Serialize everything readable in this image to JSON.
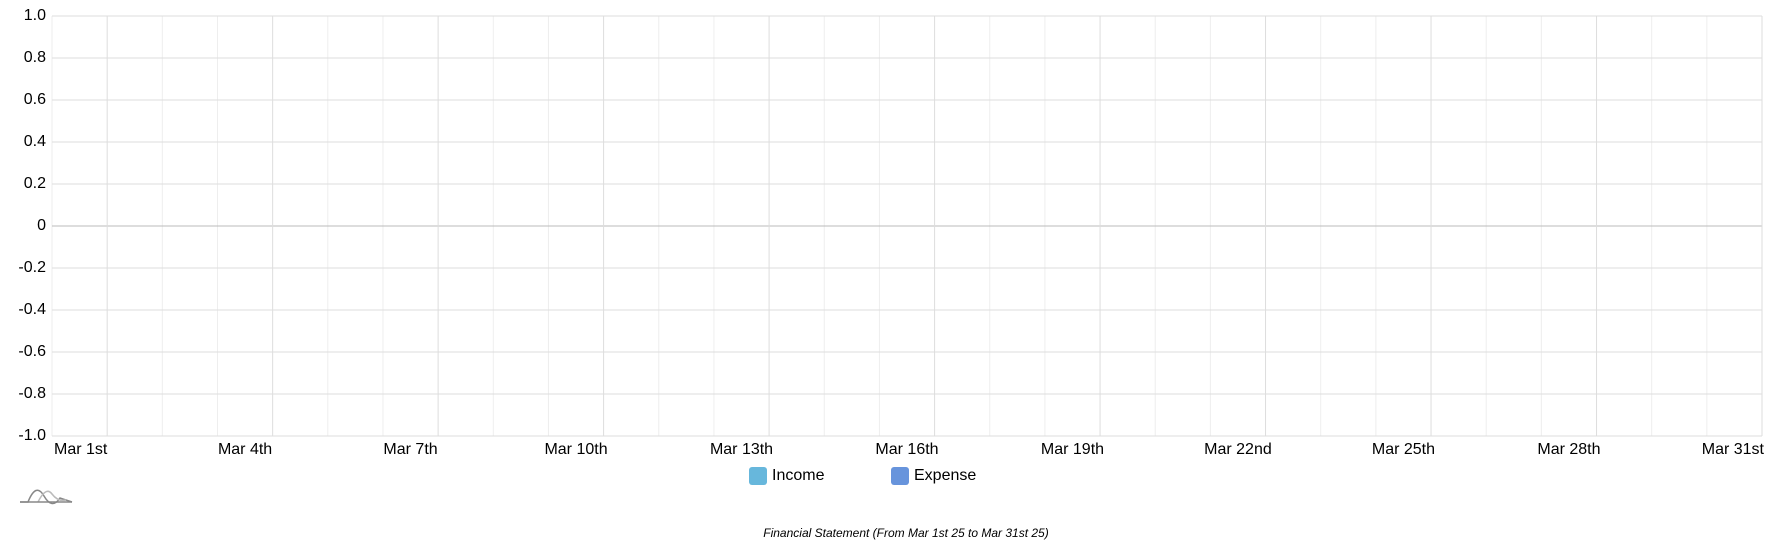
{
  "chart_data": {
    "type": "line",
    "categories": [
      "Mar 1st",
      "Mar 4th",
      "Mar 7th",
      "Mar 10th",
      "Mar 13th",
      "Mar 16th",
      "Mar 19th",
      "Mar 22nd",
      "Mar 25th",
      "Mar 28th",
      "Mar 31st"
    ],
    "series": [
      {
        "name": "Income",
        "color": "#67b7dc",
        "values": [
          null,
          null,
          null,
          null,
          null,
          null,
          null,
          null,
          null,
          null,
          null
        ]
      },
      {
        "name": "Expense",
        "color": "#6794dc",
        "values": [
          null,
          null,
          null,
          null,
          null,
          null,
          null,
          null,
          null,
          null,
          null
        ]
      }
    ],
    "ylim": [
      -1,
      1
    ],
    "yticks": [
      {
        "value": 1,
        "label": "1.0"
      },
      0.8,
      0.6,
      0.4,
      0.2,
      0,
      -0.2,
      -0.4,
      -0.6,
      -0.8,
      {
        "value": -1,
        "label": "-1.0"
      }
    ],
    "grid": true,
    "legend": "bottom",
    "caption": "Financial Statement (From Mar 1st 25 to Mar 31st 25)"
  }
}
